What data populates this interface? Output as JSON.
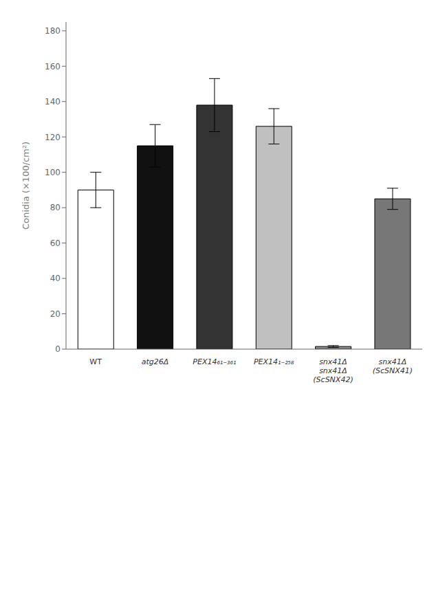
{
  "chart_data": {
    "type": "bar",
    "categories": [
      "WT",
      "atg26Δ",
      "PEX14₆₁₋₃₆₁",
      "PEX14₁₋₂₅₈",
      "snx41Δ\n(ScSNX42)",
      "snx41Δ\n(ScSNX41)"
    ],
    "values": [
      90,
      115,
      138,
      126,
      1.5,
      85
    ],
    "errors": [
      10,
      12,
      15,
      10,
      0.5,
      6
    ],
    "colors": [
      "white",
      "#111111",
      "#333333",
      "#c0c0c0",
      "#888888",
      "#777777"
    ],
    "ylabel": "Conidia (×100/cm²)",
    "ylim": [
      0,
      185
    ],
    "yticks": [
      0,
      20,
      40,
      60,
      80,
      100,
      120,
      140,
      160,
      180
    ],
    "annotations": [
      {
        "text": "snx41Δ",
        "category": "snx41Δ\n(ScSNX42)"
      }
    ],
    "grid": false
  }
}
